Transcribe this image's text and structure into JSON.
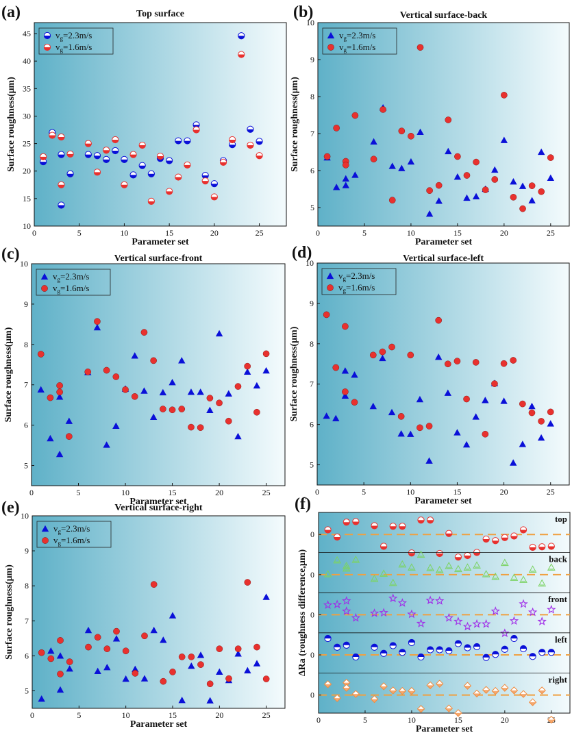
{
  "panels": [
    {
      "label": "(a)",
      "title": "Top surface",
      "xlabel": "Parameter set",
      "ylabel": "Surface roughness(μm)"
    },
    {
      "label": "(b)",
      "title": "Vertical surface-back",
      "xlabel": "Parameter set",
      "ylabel": "Surface roughness(μm)"
    },
    {
      "label": "(c)",
      "title": "Vertical surface-front",
      "xlabel": "Parameter set",
      "ylabel": "Surface roughness(μm)"
    },
    {
      "label": "(d)",
      "title": "Vertical surface-left",
      "xlabel": "Parameter set",
      "ylabel": "Surface roughness(μm)"
    },
    {
      "label": "(e)",
      "title": "Vertical surface-right",
      "xlabel": "Parameter set",
      "ylabel": "Surface roughness(μm)"
    },
    {
      "label": "(f)",
      "title": "",
      "xlabel": "Parameter set",
      "ylabel": "ΔRa (roughness difference,μm)"
    }
  ],
  "legend": {
    "v_symbol": "v",
    "subscript": "g",
    "high": "=2.3m/s",
    "low": "=1.6m/s"
  },
  "colors": {
    "blue": "#0a10d8",
    "red": "#e8312e",
    "green": "#7cd364",
    "purple": "#a02ee8",
    "orange": "#f08c40",
    "dash": "#f0a040",
    "bg_dark": "#5fb1c8",
    "bg_light": "#f4fbfd"
  },
  "chart_data": [
    {
      "type": "scatter",
      "title": "Top surface",
      "xlabel": "Parameter set",
      "ylabel": "Surface roughness(μm)",
      "xlim": [
        0,
        28
      ],
      "ylim": [
        10,
        47
      ],
      "xticks": [
        0,
        5,
        10,
        15,
        20,
        25
      ],
      "yticks": [
        10,
        15,
        20,
        25,
        30,
        35,
        40,
        45
      ],
      "marker": "half-circle",
      "legend_position": "top-left",
      "series": [
        {
          "name": "v_g=2.3m/s",
          "color": "#0a10d8",
          "x": [
            1,
            2,
            3,
            3,
            4,
            6,
            7,
            8,
            9,
            10,
            11,
            12,
            13,
            14,
            15,
            16,
            17,
            18,
            19,
            20,
            21,
            22,
            23,
            24,
            25
          ],
          "y": [
            21.7,
            27,
            23,
            13.8,
            19.5,
            23,
            22.8,
            22.1,
            23.7,
            22.1,
            19.3,
            21,
            19.5,
            22.3,
            21.9,
            25.5,
            25.5,
            28.4,
            19.2,
            17.7,
            21.9,
            24.8,
            44.6,
            27.6,
            25.4
          ]
        },
        {
          "name": "v_g=1.6m/s",
          "color": "#e8312e",
          "x": [
            1,
            2,
            3,
            3,
            4,
            6,
            7,
            8,
            9,
            10,
            11,
            12,
            13,
            14,
            15,
            16,
            17,
            18,
            19,
            20,
            21,
            22,
            23,
            24,
            25
          ],
          "y": [
            22.6,
            26.5,
            26.2,
            17.5,
            23.1,
            25,
            19.8,
            23.8,
            25.7,
            17.5,
            23,
            24.7,
            14.5,
            22.7,
            16.3,
            18.9,
            21.1,
            27.5,
            18.2,
            15.3,
            21.6,
            25.7,
            41.2,
            24.7,
            22.8
          ]
        }
      ]
    },
    {
      "type": "scatter",
      "title": "Vertical surface-back",
      "xlabel": "Parameter set",
      "ylabel": "Surface roughness(μm)",
      "xlim": [
        0,
        27
      ],
      "ylim": [
        4.5,
        10
      ],
      "xticks": [
        0,
        5,
        10,
        15,
        20,
        25
      ],
      "yticks": [
        5,
        6,
        7,
        8,
        9,
        10
      ],
      "legend_position": "top-left",
      "series": [
        {
          "name": "v_g=2.3m/s",
          "marker": "triangle",
          "color": "#0a10d8",
          "x": [
            1,
            2,
            3,
            3,
            4,
            6,
            7,
            8,
            9,
            10,
            11,
            12,
            13,
            14,
            15,
            16,
            17,
            18,
            19,
            20,
            21,
            22,
            23,
            24,
            25
          ],
          "y": [
            6.35,
            5.55,
            5.6,
            5.78,
            5.88,
            6.78,
            7.7,
            6.12,
            6.06,
            6.24,
            7.04,
            4.83,
            5.18,
            6.52,
            5.83,
            5.26,
            5.3,
            5.5,
            6.02,
            6.82,
            5.7,
            5.58,
            5.19,
            6.5,
            5.8
          ]
        },
        {
          "name": "v_g=1.6m/s",
          "marker": "circle",
          "color": "#e8312e",
          "x": [
            1,
            2,
            3,
            3,
            4,
            6,
            7,
            8,
            9,
            10,
            11,
            12,
            13,
            14,
            15,
            16,
            17,
            18,
            19,
            20,
            21,
            22,
            23,
            24,
            25
          ],
          "y": [
            6.38,
            7.15,
            6.25,
            6.15,
            7.49,
            6.31,
            7.65,
            5.2,
            7.07,
            6.93,
            9.33,
            5.46,
            5.6,
            7.37,
            6.38,
            5.87,
            6.23,
            5.48,
            5.76,
            8.04,
            5.28,
            4.97,
            5.59,
            5.43,
            6.35
          ]
        }
      ]
    },
    {
      "type": "scatter",
      "title": "Vertical surface-front",
      "xlabel": "Parameter set",
      "ylabel": "Surface roughness(μm)",
      "xlim": [
        0,
        27
      ],
      "ylim": [
        4.5,
        10
      ],
      "xticks": [
        0,
        5,
        10,
        15,
        20,
        25
      ],
      "yticks": [
        5,
        6,
        7,
        8,
        9,
        10
      ],
      "legend_position": "top-left",
      "series": [
        {
          "name": "v_g=2.3m/s",
          "marker": "triangle",
          "color": "#0a10d8",
          "x": [
            1,
            2,
            3,
            3,
            4,
            6,
            7,
            8,
            9,
            10,
            11,
            12,
            13,
            14,
            15,
            16,
            17,
            18,
            19,
            20,
            21,
            22,
            23,
            24,
            25
          ],
          "y": [
            6.88,
            5.67,
            6.7,
            5.28,
            6.1,
            7.31,
            8.42,
            5.51,
            5.98,
            6.9,
            7.72,
            6.85,
            6.2,
            6.81,
            7.06,
            7.6,
            6.82,
            6.82,
            6.37,
            8.27,
            6.78,
            5.72,
            7.32,
            6.98,
            7.35
          ]
        },
        {
          "name": "v_g=1.6m/s",
          "marker": "circle",
          "color": "#e8312e",
          "x": [
            1,
            2,
            3,
            3,
            4,
            6,
            7,
            8,
            9,
            10,
            11,
            12,
            13,
            14,
            15,
            16,
            17,
            18,
            19,
            20,
            21,
            22,
            23,
            24,
            25
          ],
          "y": [
            7.76,
            6.68,
            6.98,
            6.82,
            5.72,
            7.32,
            8.57,
            7.36,
            7.2,
            6.88,
            6.71,
            8.3,
            7.6,
            6.4,
            6.38,
            6.4,
            5.95,
            5.94,
            6.67,
            6.55,
            6.1,
            6.96,
            7.46,
            6.32,
            7.77
          ]
        }
      ]
    },
    {
      "type": "scatter",
      "title": "Vertical surface-left",
      "xlabel": "Parameter set",
      "ylabel": "Surface roughness(μm)",
      "xlim": [
        0,
        27
      ],
      "ylim": [
        4.5,
        10
      ],
      "xticks": [
        0,
        5,
        10,
        15,
        20,
        25
      ],
      "yticks": [
        5,
        6,
        7,
        8,
        9,
        10
      ],
      "legend_position": "top-left",
      "series": [
        {
          "name": "v_g=2.3m/s",
          "marker": "triangle",
          "color": "#0a10d8",
          "x": [
            1,
            2,
            3,
            3,
            4,
            6,
            7,
            8,
            9,
            10,
            11,
            12,
            13,
            14,
            15,
            16,
            17,
            18,
            19,
            20,
            21,
            22,
            23,
            24,
            25
          ],
          "y": [
            6.21,
            6.15,
            7.33,
            6.71,
            7.23,
            6.45,
            7.64,
            6.3,
            5.77,
            5.76,
            6.62,
            5.1,
            7.67,
            6.78,
            5.8,
            5.5,
            6.19,
            6.6,
            7.02,
            6.58,
            5.05,
            5.51,
            6.45,
            5.67,
            6.02
          ]
        },
        {
          "name": "v_g=1.6m/s",
          "marker": "circle",
          "color": "#e8312e",
          "x": [
            1,
            2,
            3,
            3,
            4,
            6,
            7,
            8,
            9,
            10,
            11,
            12,
            13,
            14,
            15,
            16,
            17,
            18,
            19,
            20,
            21,
            22,
            23,
            24,
            25
          ],
          "y": [
            8.72,
            7.41,
            8.43,
            6.81,
            6.55,
            7.72,
            7.8,
            7.92,
            6.2,
            7.72,
            5.92,
            5.96,
            8.58,
            7.5,
            7.57,
            6.63,
            7.54,
            5.76,
            7.01,
            7.51,
            7.59,
            6.51,
            6.29,
            6.08,
            6.31
          ]
        }
      ]
    },
    {
      "type": "scatter",
      "title": "Vertical surface-right",
      "xlabel": "Parameter set",
      "ylabel": "Surface roughness(μm)",
      "xlim": [
        0,
        27
      ],
      "ylim": [
        4.5,
        10
      ],
      "xticks": [
        0,
        5,
        10,
        15,
        20,
        25
      ],
      "yticks": [
        5,
        6,
        7,
        8,
        9,
        10
      ],
      "legend_position": "top-left",
      "series": [
        {
          "name": "v_g=2.3m/s",
          "marker": "triangle",
          "color": "#0a10d8",
          "x": [
            1,
            2,
            3,
            3,
            4,
            6,
            7,
            8,
            9,
            10,
            11,
            12,
            13,
            14,
            15,
            16,
            17,
            18,
            19,
            20,
            21,
            22,
            23,
            24,
            25
          ],
          "y": [
            4.77,
            6.14,
            6.0,
            5.03,
            5.63,
            6.73,
            5.56,
            5.67,
            6.49,
            5.34,
            5.62,
            5.35,
            6.73,
            6.45,
            7.15,
            4.73,
            5.71,
            6.02,
            4.72,
            5.54,
            5.3,
            6.06,
            5.58,
            5.78,
            7.68
          ]
        },
        {
          "name": "v_g=1.6m/s",
          "marker": "circle",
          "color": "#e8312e",
          "x": [
            1,
            2,
            3,
            3,
            4,
            6,
            7,
            8,
            9,
            10,
            11,
            12,
            13,
            14,
            15,
            16,
            17,
            18,
            19,
            20,
            21,
            22,
            23,
            24,
            25
          ],
          "y": [
            6.09,
            5.92,
            6.44,
            5.48,
            5.83,
            6.25,
            6.53,
            6.2,
            6.7,
            6.14,
            5.5,
            6.57,
            8.04,
            5.27,
            5.54,
            5.97,
            5.97,
            5.75,
            5.2,
            6.2,
            5.35,
            6.2,
            8.1,
            6.25,
            5.34
          ]
        }
      ]
    },
    {
      "type": "scatter",
      "title": "",
      "xlabel": "Parameter set",
      "ylabel": "ΔRa (roughness difference,μm)",
      "xlim": [
        0,
        27
      ],
      "xticks": [
        0,
        5,
        10,
        15,
        20,
        25
      ],
      "rows": [
        {
          "name": "top",
          "marker": "half-circle",
          "color": "#e8312e",
          "zero_tick": "0",
          "x": [
            1,
            2,
            3,
            4,
            6,
            7,
            8,
            9,
            10,
            11,
            12,
            13,
            14,
            15,
            16,
            17,
            18,
            19,
            20,
            21,
            22,
            23,
            24,
            25
          ],
          "y": [
            0.9,
            -0.5,
            2.4,
            2.5,
            1.7,
            -2.3,
            1.6,
            1.6,
            -3.6,
            2.8,
            2.8,
            -3.7,
            0.2,
            -4.4,
            -4.1,
            -3.5,
            -0.9,
            -1.2,
            -0.6,
            -0.3,
            0.9,
            -2.5,
            -2.4,
            -2.3
          ]
        },
        {
          "name": "back",
          "marker": "triangle",
          "color": "#7cd364",
          "zero_tick": "0",
          "x": [
            1,
            2,
            3,
            3,
            4,
            6,
            7,
            8,
            9,
            10,
            11,
            12,
            13,
            14,
            15,
            16,
            17,
            18,
            19,
            20,
            21,
            22,
            23,
            24,
            25
          ],
          "y": [
            0.1,
            2.8,
            1.7,
            1.2,
            2.9,
            -0.8,
            0.2,
            -1.6,
            2.0,
            1.4,
            3.9,
            1.3,
            0.9,
            1.7,
            1.1,
            1.4,
            1.8,
            0.1,
            -0.4,
            2.3,
            -0.6,
            -1.0,
            1.0,
            -1.7,
            1.4
          ]
        },
        {
          "name": "front",
          "marker": "star",
          "color": "#a02ee8",
          "zero_tick": "0",
          "x": [
            1,
            2,
            3,
            3,
            4,
            6,
            7,
            8,
            9,
            10,
            11,
            12,
            13,
            14,
            15,
            16,
            17,
            18,
            19,
            20,
            21,
            22,
            23,
            24,
            25
          ],
          "y": [
            1.9,
            2.0,
            2.7,
            0.7,
            -0.6,
            0.3,
            0.4,
            3.2,
            2.3,
            0.1,
            -1.7,
            2.8,
            2.7,
            -0.6,
            -1.3,
            -2.3,
            -1.8,
            -1.8,
            0.7,
            -3.6,
            -1.2,
            2.1,
            0.5,
            -1.3,
            1.0
          ]
        },
        {
          "name": "left",
          "marker": "circle",
          "color": "#0a10d8",
          "zero_tick": "0",
          "x": [
            1,
            2,
            3,
            4,
            6,
            7,
            8,
            9,
            10,
            11,
            12,
            13,
            14,
            15,
            16,
            17,
            18,
            19,
            20,
            21,
            22,
            23,
            24,
            25
          ],
          "y": [
            3.2,
            1.5,
            1.9,
            -0.4,
            1.5,
            0.3,
            1.8,
            0.5,
            2.4,
            -0.4,
            1.0,
            1.0,
            0.8,
            2.2,
            1.4,
            1.6,
            -0.5,
            0.1,
            1.1,
            3.2,
            1.2,
            -0.3,
            0.5,
            0.5
          ]
        },
        {
          "name": "right",
          "marker": "diamond",
          "color": "#f08c40",
          "zero_tick": "0",
          "x": [
            1,
            2,
            3,
            3,
            4,
            6,
            7,
            8,
            9,
            10,
            11,
            12,
            13,
            14,
            15,
            16,
            17,
            18,
            19,
            20,
            21,
            22,
            23,
            24,
            25
          ],
          "y": [
            2.1,
            -0.6,
            2.4,
            1.4,
            0.2,
            -0.8,
            1.7,
            0.9,
            0.8,
            0.8,
            -2.7,
            1.9,
            2.2,
            -2.6,
            -3.5,
            1.8,
            0.3,
            1.0,
            0.8,
            1.4,
            0.9,
            0.2,
            -1.4,
            0.9,
            -4.8
          ]
        }
      ]
    }
  ]
}
